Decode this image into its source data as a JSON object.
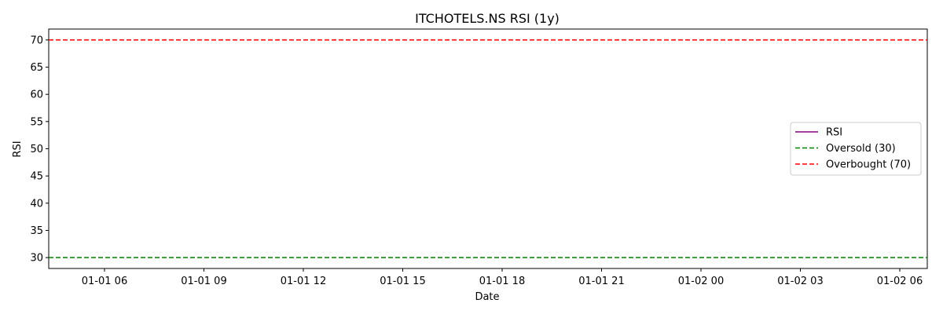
{
  "chart_data": {
    "type": "line",
    "title": "ITCHOTELS.NS RSI (1y)",
    "xlabel": "Date",
    "ylabel": "RSI",
    "x_ticks": [
      "01-01 06",
      "01-01 09",
      "01-01 12",
      "01-01 15",
      "01-01 18",
      "01-01 21",
      "01-02 00",
      "01-02 03",
      "01-02 06"
    ],
    "y_ticks": [
      30,
      35,
      40,
      45,
      50,
      55,
      60,
      65,
      70
    ],
    "ylim": [
      28,
      72
    ],
    "series": [
      {
        "name": "RSI",
        "color": "#800080",
        "style": "solid",
        "values": []
      }
    ],
    "reference_lines": [
      {
        "name": "Oversold (30)",
        "y": 30,
        "color": "#008000",
        "style": "dashed"
      },
      {
        "name": "Overbought (70)",
        "y": 70,
        "color": "#ff0000",
        "style": "dashed"
      }
    ],
    "legend": {
      "position": "center-right",
      "entries": [
        {
          "label": "RSI",
          "color": "#800080",
          "style": "solid"
        },
        {
          "label": "Oversold (30)",
          "color": "#008000",
          "style": "dashed"
        },
        {
          "label": "Overbought (70)",
          "color": "#ff0000",
          "style": "dashed"
        }
      ]
    },
    "grid": false
  }
}
